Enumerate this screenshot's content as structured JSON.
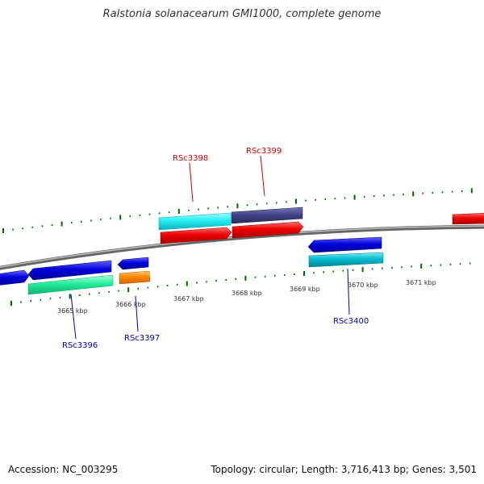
{
  "title": "Ralstonia solanacearum GMI1000, complete genome",
  "footer": {
    "accession": "Accession: NC_003295",
    "summary": "Topology: circular; Length: 3,716,413 bp; Genes: 3,501"
  },
  "scale_labels": [
    "3665 kbp",
    "3666 kbp",
    "3667 kbp",
    "3668 kbp",
    "3669 kbp",
    "3670 kbp",
    "3671 kbp"
  ],
  "gene_labels": [
    {
      "id": "RSc3398",
      "color": "#cc0000"
    },
    {
      "id": "RSc3399",
      "color": "#cc0000"
    },
    {
      "id": "RSc3396",
      "color": "#0000aa"
    },
    {
      "id": "RSc3397",
      "color": "#0000aa"
    },
    {
      "id": "RSc3400",
      "color": "#0000aa"
    }
  ],
  "colors": {
    "backbone": "#888888",
    "tick": "#006600",
    "forward_red": "#ee0000",
    "cyan": "#22eeee",
    "slate": "#444488",
    "blue": "#0000dd",
    "green": "#22ee99",
    "orange": "#ff8800",
    "teal": "#00bbcc"
  }
}
